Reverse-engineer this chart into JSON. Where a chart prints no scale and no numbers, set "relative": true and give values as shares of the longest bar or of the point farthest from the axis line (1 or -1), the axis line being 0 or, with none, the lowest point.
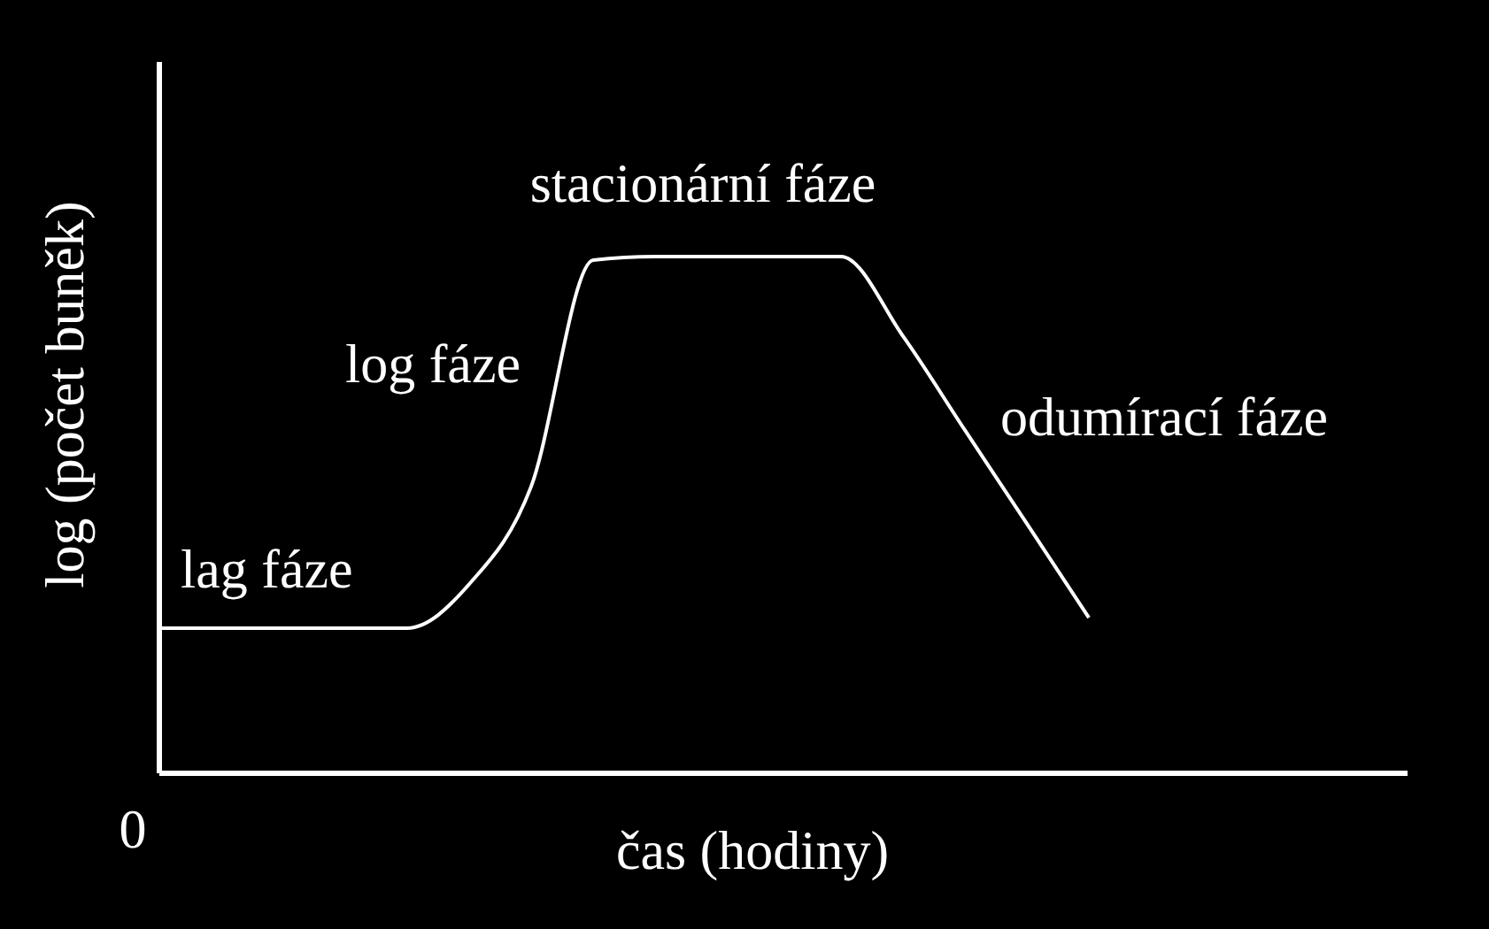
{
  "chart_data": {
    "type": "line",
    "relative": true,
    "xlabel": "čas (hodiny)",
    "ylabel": "log (počet buněk)",
    "categories": [
      null,
      null,
      null,
      null,
      null,
      null,
      null,
      null,
      null,
      null,
      null,
      null,
      null,
      null,
      null,
      null,
      null,
      null,
      null,
      null,
      null
    ],
    "series": [
      {
        "color": "#ffffff",
        "values": [
          0.281,
          0.281,
          0.281,
          0.281,
          0.281,
          0.366,
          0.555,
          0.993,
          1,
          1,
          1,
          1,
          0.846,
          0.664,
          0.483,
          0.301,
          null,
          null,
          null,
          null,
          null
        ]
      }
    ],
    "annotations": [
      "0",
      "lag fáze",
      "log fáze",
      "stacionární fáze",
      "odumírací fáze"
    ]
  }
}
